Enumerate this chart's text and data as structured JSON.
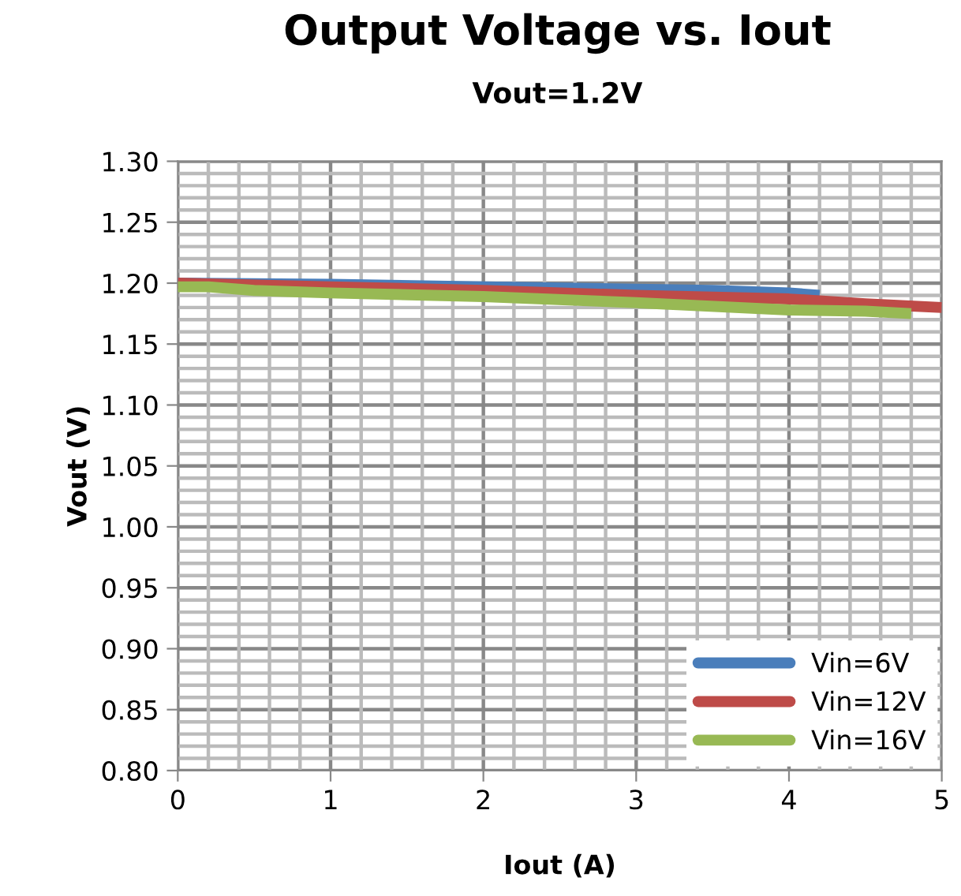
{
  "chart_data": {
    "type": "line",
    "title": "Output Voltage vs. Iout",
    "subtitle": "Vout=1.2V",
    "xlabel": "Iout (A)",
    "ylabel": "Vout (V)",
    "xlim": [
      0,
      5
    ],
    "xticks": [
      0,
      1,
      2,
      3,
      4,
      5
    ],
    "ylim": [
      0.8,
      1.3
    ],
    "yticks": [
      {
        "value": 0.8,
        "label": "0.80"
      },
      {
        "value": 0.85,
        "label": "0.85"
      },
      {
        "value": 0.9,
        "label": "0.90"
      },
      {
        "value": 0.95,
        "label": "0.95"
      },
      {
        "value": 1.0,
        "label": "1.00"
      },
      {
        "value": 1.05,
        "label": "1.05"
      },
      {
        "value": 1.1,
        "label": "1.10"
      },
      {
        "value": 1.15,
        "label": "1.15"
      },
      {
        "value": 1.2,
        "label": "1.20"
      },
      {
        "value": 1.25,
        "label": "1.25"
      },
      {
        "value": 1.3,
        "label": "1.30"
      }
    ],
    "grid": true,
    "legend": "bottom right",
    "marker": "none",
    "line_style": "solid",
    "series": [
      {
        "name": "Vin=6V",
        "color": "#4a7ebb",
        "x": [
          0,
          1,
          2,
          3,
          3.5,
          4,
          4.2
        ],
        "values": [
          1.2,
          1.199,
          1.197,
          1.195,
          1.194,
          1.192,
          1.19
        ]
      },
      {
        "name": "Vin=12V",
        "color": "#be4b48",
        "x": [
          0,
          1,
          2,
          3,
          4,
          4.5,
          5
        ],
        "values": [
          1.2,
          1.197,
          1.194,
          1.19,
          1.187,
          1.183,
          1.18
        ]
      },
      {
        "name": "Vin=16V",
        "color": "#98b954",
        "x": [
          0,
          0.2,
          0.5,
          1,
          2,
          3,
          4,
          4.5,
          4.8
        ],
        "values": [
          1.197,
          1.197,
          1.194,
          1.192,
          1.189,
          1.184,
          1.178,
          1.177,
          1.175
        ]
      }
    ]
  }
}
